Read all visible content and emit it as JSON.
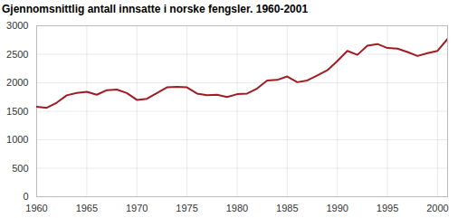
{
  "chart_data": {
    "type": "line",
    "title": "Gjennomsnittlig antall innsatte i norske fengsler. 1960-2001",
    "x": [
      1960,
      1961,
      1962,
      1963,
      1964,
      1965,
      1966,
      1967,
      1968,
      1969,
      1970,
      1971,
      1972,
      1973,
      1974,
      1975,
      1976,
      1977,
      1978,
      1979,
      1980,
      1981,
      1982,
      1983,
      1984,
      1985,
      1986,
      1987,
      1988,
      1989,
      1990,
      1991,
      1992,
      1993,
      1994,
      1995,
      1996,
      1997,
      1998,
      1999,
      2000,
      2001
    ],
    "values": [
      1580,
      1560,
      1650,
      1780,
      1820,
      1840,
      1790,
      1870,
      1880,
      1820,
      1700,
      1720,
      1820,
      1920,
      1930,
      1920,
      1810,
      1780,
      1790,
      1750,
      1800,
      1810,
      1900,
      2040,
      2050,
      2110,
      2010,
      2040,
      2130,
      2220,
      2380,
      2560,
      2490,
      2650,
      2680,
      2610,
      2600,
      2540,
      2470,
      2520,
      2560,
      2770
    ],
    "color": "#a01c22",
    "xlim": [
      1960,
      2001
    ],
    "xticks": [
      1960,
      1965,
      1970,
      1975,
      1980,
      1985,
      1990,
      1995,
      2000
    ],
    "ylim": [
      0,
      3000
    ],
    "yticks": [
      0,
      500,
      1000,
      1500,
      2000,
      2500,
      3000
    ],
    "grid": true
  }
}
